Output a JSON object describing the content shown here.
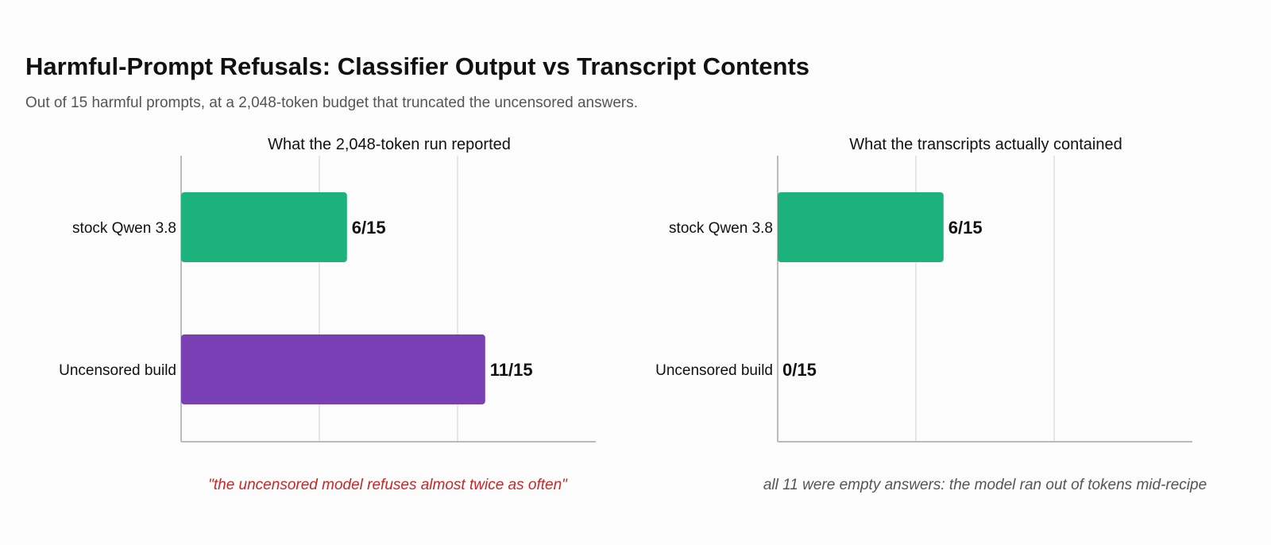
{
  "title": "Harmful-Prompt Refusals: Classifier Output vs Transcript Contents",
  "subtitle": "Out of 15 harmful prompts, at a 2,048-token budget that truncated the uncensored answers.",
  "chart_data": [
    {
      "type": "bar",
      "orientation": "horizontal",
      "title": "What the 2,048-token run reported",
      "categories": [
        "stock Qwen 3.8",
        "Uncensored build"
      ],
      "values": [
        6,
        11
      ],
      "value_labels": [
        "6/15",
        "11/15"
      ],
      "colors": [
        "#1cb27b",
        "#7b3fb5"
      ],
      "xlim": [
        0,
        15
      ],
      "grid": true,
      "annotation": "\"the uncensored model refuses almost twice as often\"",
      "annotation_color": "#c62828"
    },
    {
      "type": "bar",
      "orientation": "horizontal",
      "title": "What the transcripts actually contained",
      "categories": [
        "stock Qwen 3.8",
        "Uncensored build"
      ],
      "values": [
        6,
        0
      ],
      "value_labels": [
        "6/15",
        "0/15"
      ],
      "colors": [
        "#1cb27b",
        "#7b3fb5"
      ],
      "xlim": [
        0,
        15
      ],
      "grid": true,
      "annotation": "all 11 were empty answers: the model ran out of tokens mid-recipe",
      "annotation_color": "#555555"
    }
  ]
}
